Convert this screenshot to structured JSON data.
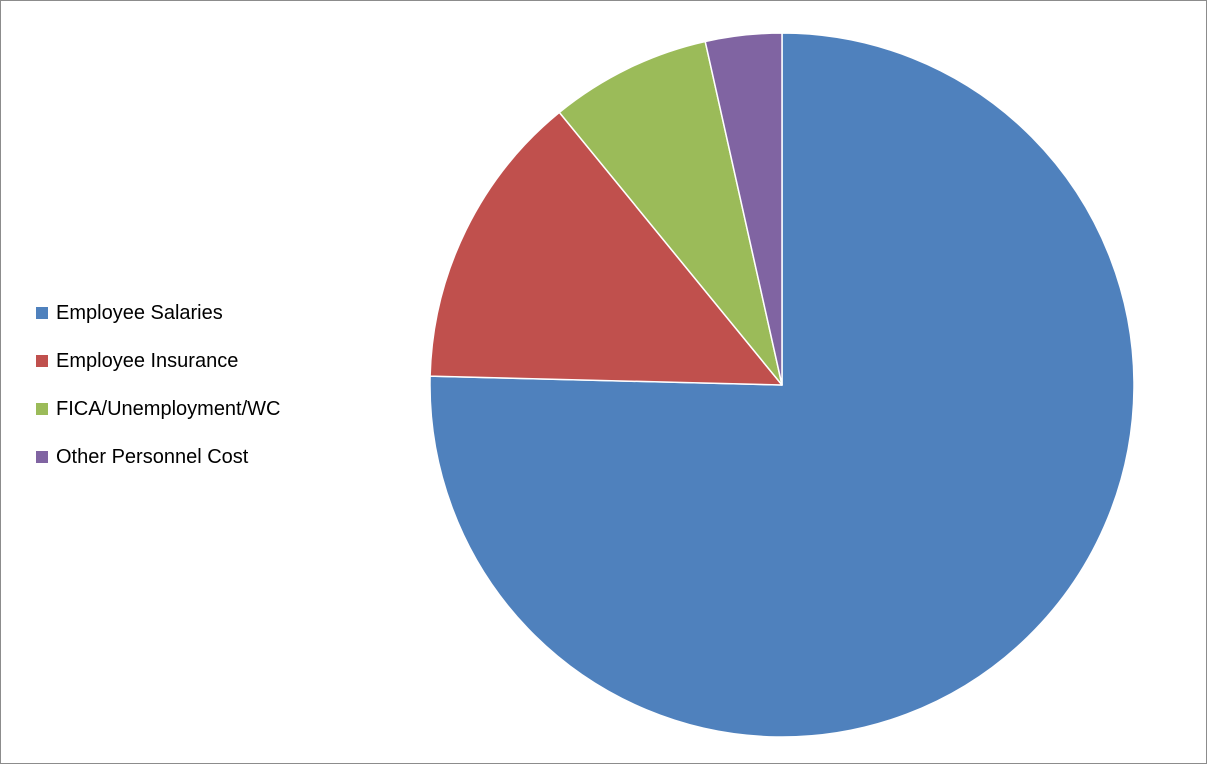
{
  "chart_data": {
    "type": "pie",
    "title": "",
    "categories": [
      "Employee Salaries",
      "Employee Insurance",
      "FICA/Unemployment/WC",
      "Other Personnel Cost"
    ],
    "values": [
      75.4,
      13.7,
      7.4,
      3.5
    ],
    "unit": "percent",
    "colors": [
      "#4f81bd",
      "#c0504d",
      "#9bbb59",
      "#8064a2"
    ],
    "start_angle": "12 o'clock",
    "direction": "clockwise",
    "legend_position": "left",
    "legend": [
      {
        "label": "Employee Salaries",
        "color": "#4f81bd"
      },
      {
        "label": "Employee Insurance",
        "color": "#c0504d"
      },
      {
        "label": "FICA/Unemployment/WC",
        "color": "#9bbb59"
      },
      {
        "label": "Other Personnel Cost",
        "color": "#8064a2"
      }
    ]
  }
}
